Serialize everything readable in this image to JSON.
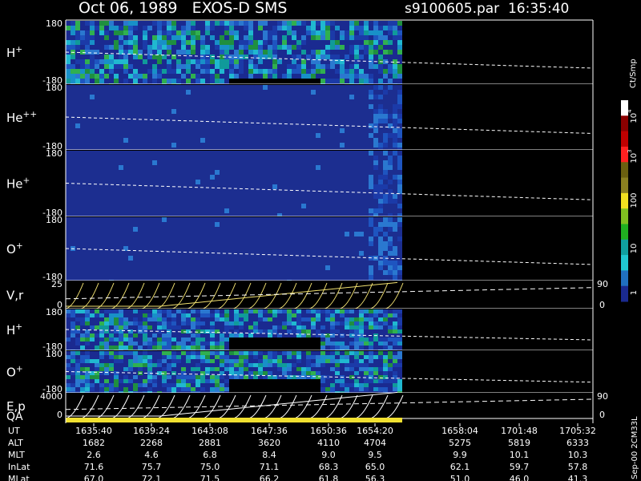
{
  "header": {
    "left": "Oct 06, 1989   EXOS-D SMS",
    "right": "s9100605.par  16:35:40"
  },
  "panels": [
    {
      "label": {
        "base": "H",
        "sup": "+"
      },
      "top": "180",
      "bottom": "-180"
    },
    {
      "label": {
        "base": "He",
        "sup": "++"
      },
      "top": "180",
      "bottom": "-180"
    },
    {
      "label": {
        "base": "He",
        "sup": "+"
      },
      "top": "180",
      "bottom": "-180"
    },
    {
      "label": {
        "base": "O",
        "sup": "+"
      },
      "top": "180",
      "bottom": "-180"
    },
    {
      "label": {
        "base": "V,r",
        "sup": ""
      },
      "top": "25",
      "bottom": "0",
      "right_top": "90",
      "right_bottom": "0"
    },
    {
      "label": {
        "base": "H",
        "sup": "+"
      },
      "top": "180",
      "bottom": "-180"
    },
    {
      "label": {
        "base": "O",
        "sup": "+"
      },
      "top": "180",
      "bottom": "-180"
    },
    {
      "label": {
        "base": "E,p",
        "sup": ""
      },
      "top": "4000",
      "bottom": "0",
      "right_top": "90",
      "right_bottom": "0"
    }
  ],
  "qa_label": "QA",
  "colorbar": {
    "unit": "Ct/Smp",
    "labels": [
      {
        "base": "10",
        "sup": "4"
      },
      {
        "base": "10",
        "sup": "3"
      },
      {
        "base": "100",
        "sup": ""
      },
      {
        "base": "10",
        "sup": ""
      },
      {
        "base": "1",
        "sup": ""
      }
    ]
  },
  "table": {
    "rows": [
      {
        "label": "UT",
        "cells": [
          "1635:40",
          "1639:24",
          "1643:08",
          "1647:36",
          "1650:36",
          "1654:20",
          "1658:04",
          "1701:48",
          "1705:32"
        ]
      },
      {
        "label": "ALT",
        "cells": [
          "1682",
          "2268",
          "2881",
          "3620",
          "4110",
          "4704",
          "5275",
          "5819",
          "6333"
        ]
      },
      {
        "label": "MLT",
        "cells": [
          "2.6",
          "4.6",
          "6.8",
          "8.4",
          "9.0",
          "9.5",
          "9.9",
          "10.1",
          "10.3"
        ]
      },
      {
        "label": "InLat",
        "cells": [
          "71.6",
          "75.7",
          "75.0",
          "71.1",
          "68.3",
          "65.0",
          "62.1",
          "59.7",
          "57.8"
        ]
      },
      {
        "label": "MLat",
        "cells": [
          "67.0",
          "72.1",
          "71.5",
          "66.2",
          "61.8",
          "56.3",
          "51.0",
          "46.0",
          "41.3"
        ]
      }
    ]
  },
  "footer_note": "Sep-00  2CM33L"
}
